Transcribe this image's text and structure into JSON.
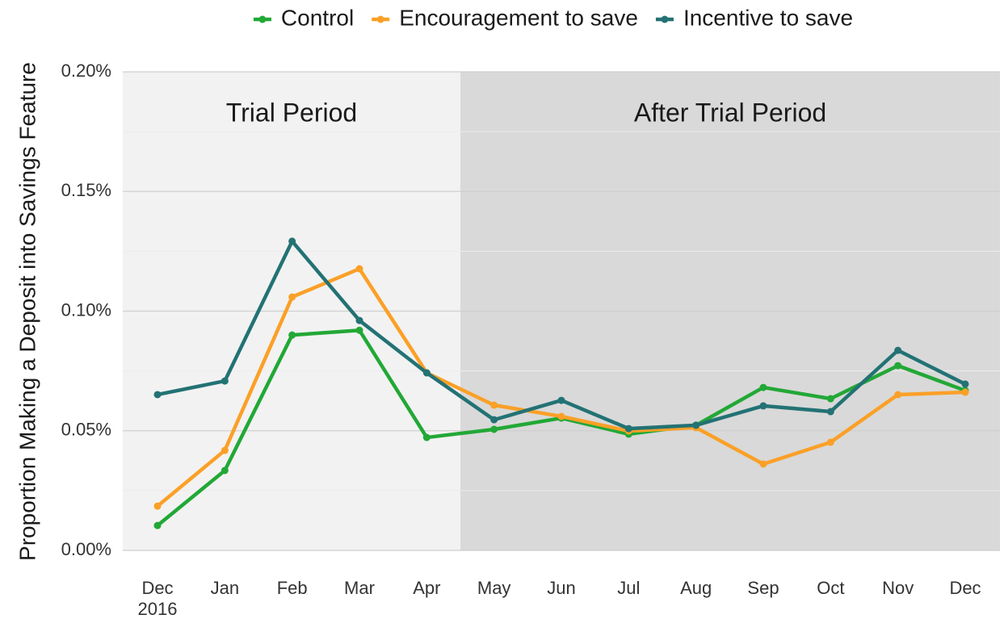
{
  "chart_data": {
    "type": "line",
    "y_label": "Proportion Making a Deposit into Savings Feature",
    "categories": [
      "Dec\n2016",
      "Jan",
      "Feb",
      "Mar",
      "Apr",
      "May",
      "Jun",
      "Jul",
      "Aug",
      "Sep",
      "Oct",
      "Nov",
      "Dec"
    ],
    "series": [
      {
        "name": "Control",
        "color": "#22a836",
        "values": [
          0.0104,
          0.0334,
          0.09,
          0.092,
          0.0472,
          0.0506,
          0.0553,
          0.0486,
          0.0523,
          0.0681,
          0.0634,
          0.0772,
          0.0668
        ]
      },
      {
        "name": "Encouragement to save",
        "color": "#fba027",
        "values": [
          0.0185,
          0.0418,
          0.1059,
          0.1177,
          0.0742,
          0.0607,
          0.056,
          0.0499,
          0.0513,
          0.0361,
          0.0452,
          0.0651,
          0.0661
        ]
      },
      {
        "name": "Incentive to save",
        "color": "#237274",
        "values": [
          0.0651,
          0.0708,
          0.1292,
          0.0961,
          0.0742,
          0.0546,
          0.0627,
          0.0509,
          0.0523,
          0.0604,
          0.058,
          0.0836,
          0.0695
        ]
      }
    ],
    "regions": [
      {
        "label": "Trial Period",
        "from": "Dec\n2016",
        "to": "Apr",
        "color": "#f2f2f2"
      },
      {
        "label": "After Trial Period",
        "from": "May",
        "to": "Dec",
        "color": "#d9d9d9"
      }
    ],
    "ylim": [
      0,
      0.2
    ],
    "yticks": [
      {
        "value": 0,
        "label": "0.00%"
      },
      {
        "value": 0.05,
        "label": "0.05%"
      },
      {
        "value": 0.1,
        "label": "0.10%"
      },
      {
        "value": 0.15,
        "label": "0.15%"
      },
      {
        "value": 0.2,
        "label": "0.20%"
      }
    ],
    "grid": true,
    "minor_grid": true,
    "legend": "top"
  }
}
